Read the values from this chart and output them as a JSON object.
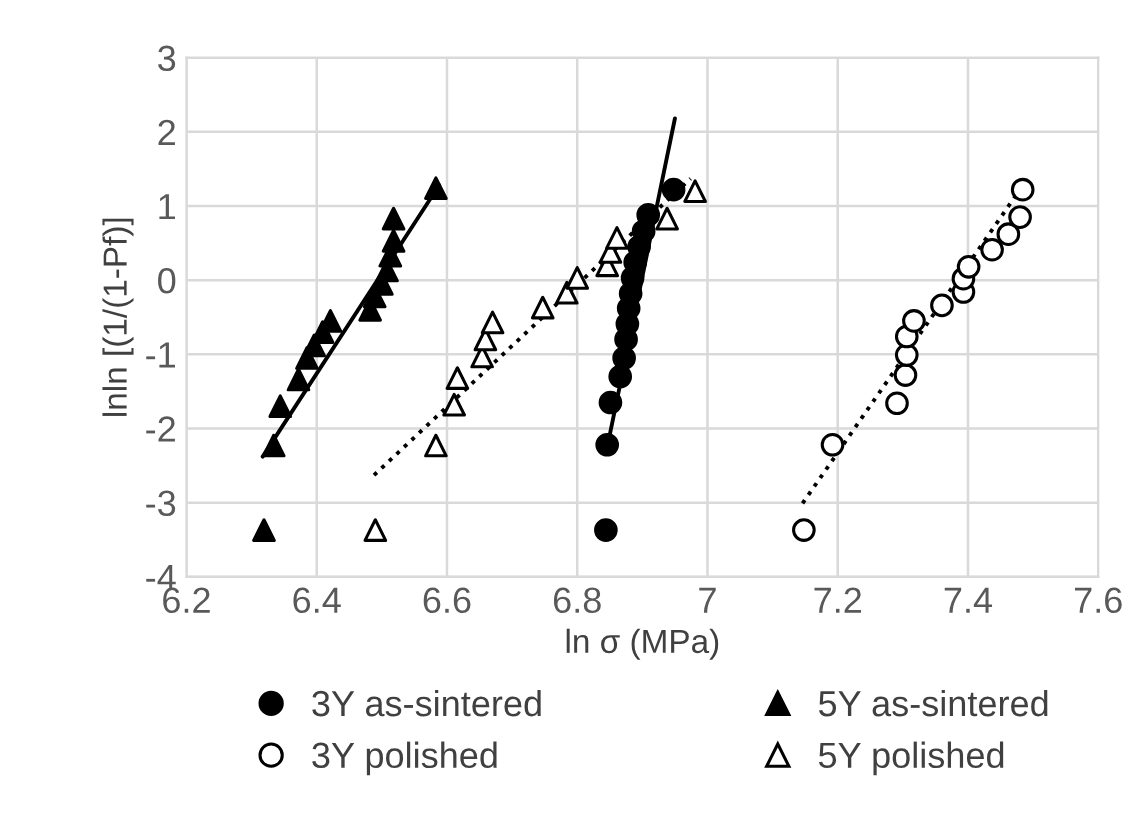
{
  "chart_data": {
    "type": "scatter",
    "xlabel": "ln σ (MPa)",
    "ylabel": "lnln [(1/(1-Pf)]",
    "xlim": [
      6.2,
      7.6
    ],
    "xticks": [
      6.2,
      6.4,
      6.6,
      6.8,
      7,
      7.2,
      7.4,
      7.6
    ],
    "ylim": [
      -4,
      3
    ],
    "yticks": [
      -4,
      -3,
      -2,
      -1,
      0,
      1,
      2,
      3
    ],
    "grid": true,
    "legend": "bottom",
    "series": [
      {
        "name": "3Y as-sintered",
        "color": "#000000",
        "marker": "circle",
        "x": [
          6.844,
          6.846,
          6.851,
          6.866,
          6.872,
          6.875,
          6.877,
          6.879,
          6.882,
          6.885,
          6.889,
          6.895,
          6.902,
          6.909,
          6.948
        ],
        "values": [
          -3.37,
          -2.22,
          -1.65,
          -1.3,
          -1.05,
          -0.8,
          -0.59,
          -0.38,
          -0.18,
          0.03,
          0.24,
          0.45,
          0.66,
          0.88,
          1.22
        ]
      },
      {
        "name": "5Y as-sintered",
        "color": "#000000",
        "marker": "triangle",
        "x": [
          6.319,
          6.334,
          6.344,
          6.372,
          6.385,
          6.396,
          6.409,
          6.421,
          6.482,
          6.489,
          6.5,
          6.508,
          6.513,
          6.518,
          6.518,
          6.583
        ],
        "values": [
          -3.37,
          -2.23,
          -1.7,
          -1.34,
          -1.05,
          -0.88,
          -0.7,
          -0.55,
          -0.4,
          -0.22,
          -0.05,
          0.13,
          0.33,
          0.53,
          0.83,
          1.24
        ]
      },
      {
        "name": "3Y polished",
        "color": "#ffffff",
        "marker": "circle",
        "x": [
          7.148,
          7.192,
          7.291,
          7.304,
          7.306,
          7.306,
          7.317,
          7.36,
          7.393,
          7.393,
          7.401,
          7.437,
          7.462,
          7.48,
          7.484
        ],
        "values": [
          -3.37,
          -2.22,
          -1.66,
          -1.28,
          -1.01,
          -0.76,
          -0.55,
          -0.34,
          -0.16,
          0.02,
          0.18,
          0.41,
          0.62,
          0.85,
          1.22
        ]
      },
      {
        "name": "5Y polished",
        "color": "#ffffff",
        "marker": "triangle",
        "x": [
          6.49,
          6.583,
          6.611,
          6.616,
          6.654,
          6.659,
          6.67,
          6.747,
          6.784,
          6.8,
          6.846,
          6.851,
          6.861,
          6.938,
          6.981
        ],
        "values": [
          -3.37,
          -2.23,
          -1.68,
          -1.32,
          -1.03,
          -0.8,
          -0.57,
          -0.37,
          -0.17,
          0.03,
          0.2,
          0.38,
          0.57,
          0.83,
          1.2
        ]
      },
      {
        "type": "line",
        "color": "#000000",
        "line_style": "solid",
        "x": [
          6.844,
          6.95
        ],
        "values": [
          -2.34,
          2.18
        ]
      },
      {
        "type": "line",
        "color": "#000000",
        "line_style": "solid",
        "x": [
          6.317,
          6.588
        ],
        "values": [
          -2.38,
          1.28
        ]
      },
      {
        "type": "line",
        "color": "#000000",
        "line_style": "dotted",
        "x": [
          7.146,
          7.486
        ],
        "values": [
          -3.01,
          1.3
        ]
      },
      {
        "type": "line",
        "color": "#000000",
        "line_style": "dotted",
        "x": [
          6.488,
          6.974
        ],
        "values": [
          -2.63,
          1.37
        ]
      }
    ]
  }
}
